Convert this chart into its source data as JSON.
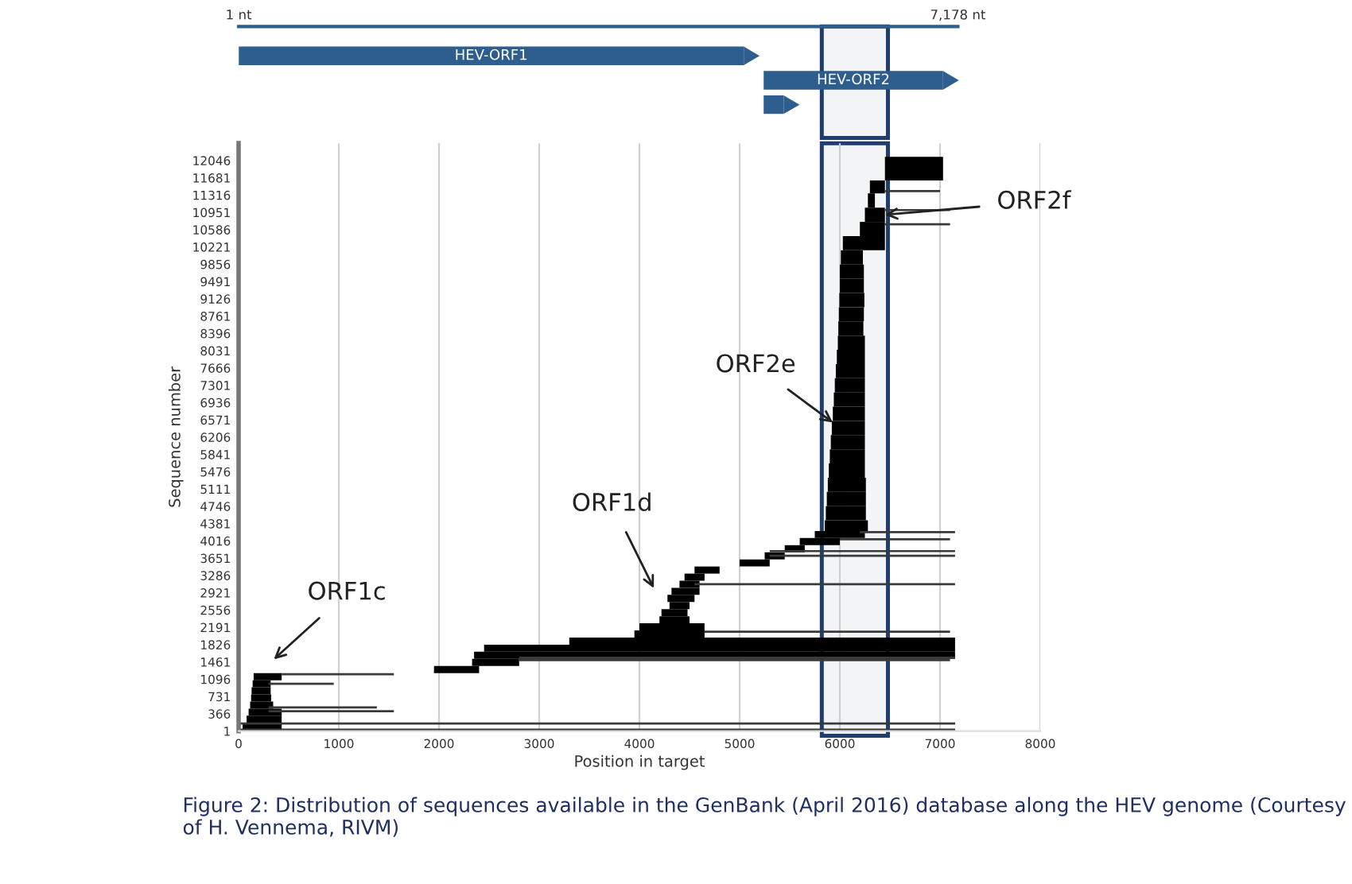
{
  "chart_data": [
    {
      "type": "bar",
      "orientation": "horizontal",
      "categories": [
        "HEV-ORF1",
        "HEV-ORF2",
        null
      ],
      "base": [
        1,
        5240,
        5240
      ],
      "values": [
        5040,
        1790,
        200
      ],
      "color": "#2e5e8e",
      "xlim": [
        1,
        7178
      ],
      "bands": [
        {
          "axis": "x",
          "from": 5820,
          "to": 6480,
          "color": "#1f3d6e"
        }
      ],
      "xticks": [
        {
          "value": 1,
          "label": "1 nt"
        },
        {
          "value": 7178,
          "label": "7,178 nt"
        }
      ]
    },
    {
      "type": "bar",
      "orientation": "horizontal",
      "xlim": [
        0,
        8000
      ],
      "xticks": [
        0,
        1000,
        2000,
        3000,
        4000,
        5000,
        6000,
        7000,
        8000
      ],
      "ylim": [
        1,
        12411
      ],
      "yticks": [
        1,
        366,
        731,
        1096,
        1461,
        1826,
        2191,
        2556,
        2921,
        3286,
        3651,
        4016,
        4381,
        4746,
        5111,
        5476,
        5841,
        6206,
        6571,
        6936,
        7301,
        7666,
        8031,
        8396,
        8761,
        9126,
        9491,
        9856,
        10221,
        10586,
        10951,
        11316,
        11681,
        12046
      ],
      "xlabel": "Position in target",
      "ylabel": "Sequence number",
      "grid": "x",
      "legend": false,
      "bands": [
        {
          "axis": "x",
          "from": 5820,
          "to": 6480,
          "color": "#1f3d6e"
        }
      ],
      "annotations": [
        "ORF1c",
        "ORF1d",
        {
          "text": "ORF2e",
          "x": 5930,
          "y": 6514
        },
        {
          "text": "ORF2f",
          "x": 6450,
          "y": 10900
        },
        "Figure 2: Distribution of sequences available in the GenBank (April 2016) database along the HEV genome (Courtesy of H. Vennema, RIVM)"
      ],
      "series": [
        {
          "color": "#000000",
          "x": [
            100,
            250,
            400,
            550,
            700,
            850,
            1000,
            1150,
            1300,
            1450,
            1600,
            1750,
            1900,
            2050,
            2200,
            2350,
            2500,
            2650,
            2800,
            2950,
            3100,
            3250,
            3400,
            3550,
            3700,
            3850,
            4000,
            4150,
            4300,
            4600,
            4900,
            5200,
            5500,
            5800,
            6100,
            6400,
            6700,
            7000,
            7300,
            7600,
            7900,
            8200,
            8500,
            8800,
            9100,
            9400,
            9700,
            10000,
            10300,
            10600,
            10900,
            11200,
            11500,
            11750,
            12000
          ],
          "base": [
            40,
            80,
            100,
            115,
            125,
            130,
            140,
            150,
            1950,
            2330,
            2350,
            2450,
            3300,
            3950,
            4000,
            4200,
            4220,
            4300,
            4280,
            4320,
            4400,
            4450,
            4550,
            5000,
            5250,
            5450,
            5600,
            5750,
            5850,
            5860,
            5870,
            5880,
            5890,
            5900,
            5910,
            5920,
            5930,
            5940,
            5950,
            5960,
            5970,
            5980,
            5985,
            5990,
            5995,
            6000,
            6000,
            6010,
            6030,
            6200,
            6250,
            6280,
            6300,
            6450,
            6450
          ],
          "values": [
            390,
            350,
            330,
            230,
            200,
            190,
            180,
            280,
            450,
            470,
            4800,
            4700,
            3850,
            700,
            650,
            300,
            260,
            200,
            270,
            280,
            200,
            200,
            250,
            300,
            200,
            200,
            400,
            500,
            430,
            400,
            390,
            380,
            360,
            350,
            340,
            330,
            320,
            310,
            300,
            290,
            280,
            270,
            250,
            250,
            250,
            240,
            240,
            220,
            420,
            250,
            200,
            70,
            150,
            580,
            580
          ]
        },
        {
          "color": "#3a3a3a",
          "x": [
            30,
            160,
            420,
            500,
            1000,
            1200,
            1500,
            1550,
            2100,
            3100,
            3700,
            3800,
            4050,
            4200,
            10700,
            11000,
            11400
          ],
          "base": [
            1,
            1,
            300,
            300,
            300,
            430,
            2800,
            2800,
            4650,
            4550,
            5300,
            5300,
            6000,
            6200,
            6450,
            6450,
            6450
          ],
          "values": [
            7150,
            7150,
            1250,
            1080,
            650,
            1120,
            4300,
            4350,
            2450,
            2600,
            1850,
            1850,
            1100,
            950,
            650,
            650,
            550
          ]
        }
      ]
    }
  ]
}
